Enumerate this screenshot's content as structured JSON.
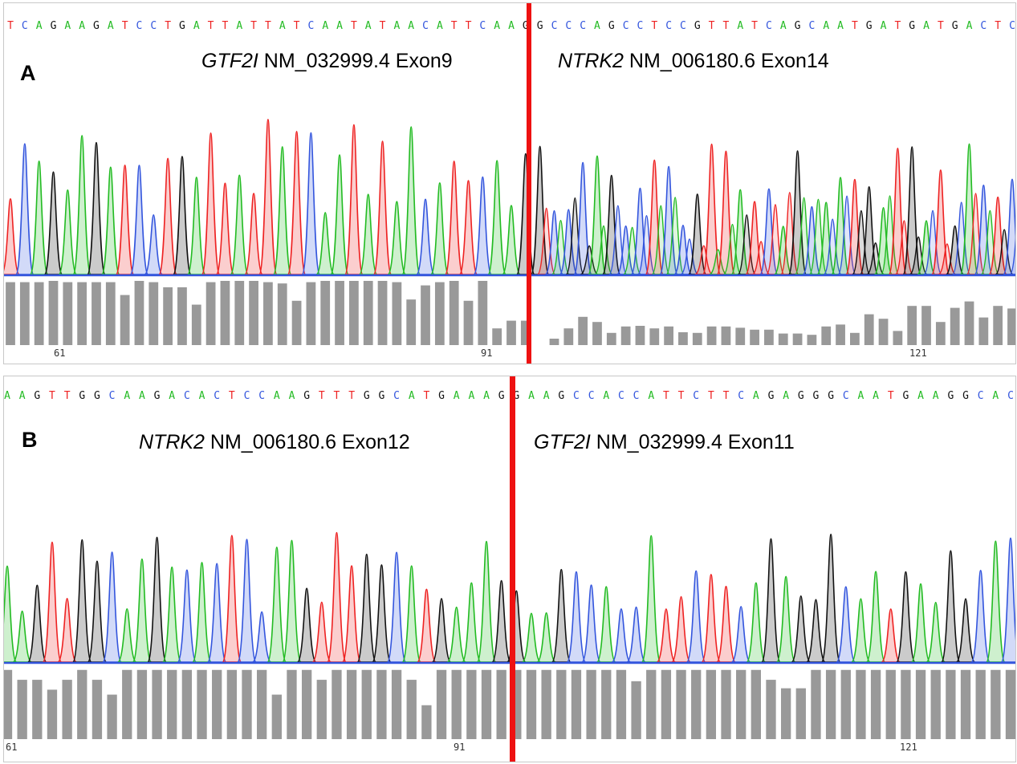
{
  "panels": [
    {
      "label": "A",
      "sequence": "TCAGAAGATCCTGATTATTATCAATATAACATTCAAGGCCCAGCCTCCGTTATCAGCAATGATGATGACTC",
      "left_gene": "GTF2I",
      "left_rest": " NM_032999.4 Exon9",
      "right_gene": "NTRK2",
      "right_rest": " NM_006180.6 Exon14",
      "positions": [
        "61",
        "91",
        "121"
      ],
      "quality": [
        0.98,
        0.98,
        0.98,
        1,
        0.98,
        0.98,
        0.98,
        0.98,
        0.78,
        1,
        0.98,
        0.9,
        0.9,
        0.63,
        0.98,
        1,
        1,
        1,
        0.98,
        0.96,
        0.69,
        0.98,
        1,
        1,
        1,
        1,
        1,
        0.98,
        0.71,
        0.93,
        0.98,
        1,
        0.69,
        1,
        0.26,
        0.38,
        0.38,
        0,
        0.1,
        0.26,
        0.44,
        0.36,
        0.19,
        0.29,
        0.3,
        0.26,
        0.29,
        0.2,
        0.19,
        0.29,
        0.29,
        0.27,
        0.24,
        0.24,
        0.18,
        0.18,
        0.16,
        0.29,
        0.32,
        0.19,
        0.48,
        0.41,
        0.22,
        0.61,
        0.61,
        0.36,
        0.58,
        0.68,
        0.43,
        0.61,
        0.57
      ]
    },
    {
      "label": "B",
      "sequence": "AAGTTGGCAAGACACTCCAAGTTTGGCATGAAAGGAAGCCACCATTCTTCAGAGGGCAATGAAGGCAC",
      "left_gene": "NTRK2",
      "left_rest": " NM_006180.6 Exon12",
      "right_gene": "GTF2I",
      "right_rest": " NM_032999.4 Exon11",
      "positions": [
        "61",
        "91",
        "121"
      ],
      "quality": [
        0.98,
        0.84,
        0.84,
        0.7,
        0.84,
        0.98,
        0.84,
        0.63,
        0.98,
        0.98,
        0.98,
        0.98,
        0.98,
        0.98,
        0.98,
        0.98,
        0.98,
        0.98,
        0.63,
        0.98,
        0.98,
        0.84,
        0.98,
        0.98,
        0.98,
        0.98,
        0.98,
        0.84,
        0.48,
        0.98,
        0.98,
        0.98,
        0.98,
        0.98,
        0.98,
        0.98,
        0.98,
        0.98,
        0.98,
        0.98,
        0.98,
        0.98,
        0.82,
        0.98,
        0.98,
        0.98,
        0.98,
        0.98,
        0.98,
        0.98,
        0.98,
        0.84,
        0.72,
        0.72,
        0.98,
        0.98,
        0.98,
        0.98,
        0.98,
        0.98,
        0.98,
        0.98,
        0.98,
        0.98,
        0.98,
        0.98,
        0.98,
        0.98,
        0.98
      ]
    }
  ],
  "base_colors": {
    "A": "#22bb22",
    "C": "#3355dd",
    "G": "#111111",
    "T": "#ee2222"
  },
  "marker_color": "#ee1111",
  "quality_bar_color": "#999999",
  "baseline_color": "#3355dd"
}
